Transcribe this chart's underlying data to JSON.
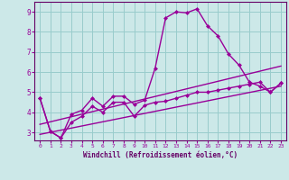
{
  "background_color": "#cce8e8",
  "grid_color": "#99cccc",
  "line_color": "#990099",
  "spine_color": "#660066",
  "x_ticks": [
    0,
    1,
    2,
    3,
    4,
    5,
    6,
    7,
    8,
    9,
    10,
    11,
    12,
    13,
    14,
    15,
    16,
    17,
    18,
    19,
    20,
    21,
    22,
    23
  ],
  "y_ticks": [
    3,
    4,
    5,
    6,
    7,
    8,
    9
  ],
  "xlabel": "Windchill (Refroidissement éolien,°C)",
  "xlabel_color": "#660066",
  "xlim": [
    -0.5,
    23.5
  ],
  "ylim": [
    2.6,
    9.5
  ],
  "series1_x": [
    0,
    1,
    2,
    3,
    4,
    5,
    6,
    7,
    8,
    9,
    10,
    11,
    12,
    13,
    14,
    15,
    16,
    17,
    18,
    19,
    20,
    21,
    22,
    23
  ],
  "series1_y": [
    4.7,
    3.05,
    2.72,
    3.9,
    4.1,
    4.7,
    4.3,
    4.8,
    4.8,
    4.4,
    4.6,
    6.2,
    8.7,
    9.0,
    8.95,
    9.15,
    8.3,
    7.8,
    6.9,
    6.35,
    5.5,
    5.3,
    5.0,
    5.45
  ],
  "series2_x": [
    0,
    1,
    2,
    3,
    4,
    5,
    6,
    7,
    8,
    9,
    10,
    11,
    12,
    13,
    14,
    15,
    16,
    17,
    18,
    19,
    20,
    21,
    22,
    23
  ],
  "series2_y": [
    4.7,
    3.05,
    2.72,
    3.5,
    3.8,
    4.3,
    4.0,
    4.5,
    4.5,
    3.8,
    4.35,
    4.5,
    4.55,
    4.7,
    4.85,
    5.0,
    5.0,
    5.1,
    5.2,
    5.3,
    5.4,
    5.5,
    5.0,
    5.45
  ],
  "series3_x": [
    0,
    23
  ],
  "series3_y": [
    2.9,
    5.3
  ],
  "series4_x": [
    0,
    23
  ],
  "series4_y": [
    3.4,
    6.3
  ],
  "marker": "D",
  "marker_size": 2.5,
  "line_width": 1.0
}
